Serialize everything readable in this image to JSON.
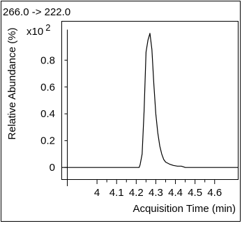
{
  "chart_data": {
    "type": "line",
    "title": "266.0 -> 222.0",
    "xlabel": "Acquisition Time (min)",
    "ylabel": "Relative Abundance (%)",
    "y_multiplier": "x10",
    "y_multiplier_exp": "2",
    "xlim": [
      3.82,
      4.72
    ],
    "ylim": [
      -0.09,
      1.09
    ],
    "x_ticks": [
      4,
      4.1,
      4.2,
      4.3,
      4.4,
      4.5,
      4.6
    ],
    "x_tick_labels": [
      "4",
      "4.1",
      "4.2",
      "4.3",
      "4.4",
      "4.5",
      "4.6"
    ],
    "y_ticks": [
      0,
      0.2,
      0.4,
      0.6,
      0.8
    ],
    "y_tick_labels": [
      "0",
      "0.2",
      "0.4",
      "0.6",
      "0.8"
    ],
    "grid": false,
    "series": [
      {
        "color": "#000000",
        "x": [
          3.82,
          4.215,
          4.22,
          4.23,
          4.24,
          4.25,
          4.26,
          4.27,
          4.28,
          4.29,
          4.3,
          4.31,
          4.32,
          4.33,
          4.34,
          4.35,
          4.37,
          4.39,
          4.41,
          4.43,
          4.44,
          4.45,
          4.72
        ],
        "values": [
          0.0,
          0.0,
          0.02,
          0.1,
          0.42,
          0.86,
          0.95,
          1.0,
          0.88,
          0.62,
          0.4,
          0.26,
          0.16,
          0.1,
          0.06,
          0.04,
          0.025,
          0.015,
          0.01,
          0.01,
          0.005,
          0.0,
          0.0
        ]
      }
    ]
  }
}
